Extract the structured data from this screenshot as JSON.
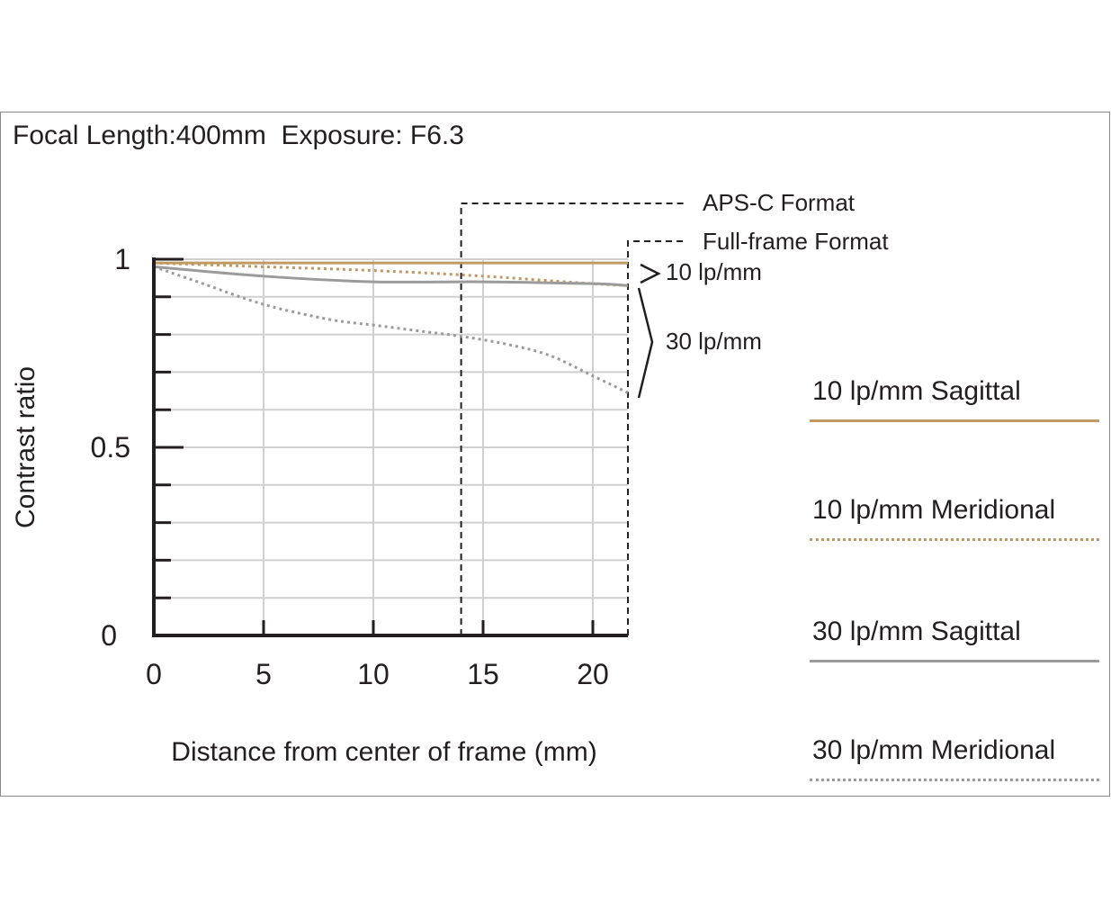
{
  "title": "Focal Length:400mm  Exposure: F6.3",
  "colors": {
    "sagittal_10": "#c09a62",
    "meridional_10": "#c09a62",
    "sagittal_30": "#9b9b9b",
    "meridional_30": "#9b9b9b",
    "axis": "#231f20",
    "grid": "#d0d0d0"
  },
  "annotations": {
    "apsc": "APS-C Format",
    "fullframe": "Full-frame Format",
    "group10": "10 lp/mm",
    "group30": "30 lp/mm"
  },
  "legend": [
    {
      "label": "10 lp/mm Sagittal",
      "style": "solid",
      "color": "#c09a62"
    },
    {
      "label": "10 lp/mm Meridional",
      "style": "dotted",
      "color": "#c09a62"
    },
    {
      "label": "30 lp/mm Sagittal",
      "style": "solid",
      "color": "#9b9b9b"
    },
    {
      "label": "30 lp/mm Meridional",
      "style": "dotted",
      "color": "#9b9b9b"
    }
  ],
  "chart_data": {
    "type": "line",
    "title": "Focal Length:400mm  Exposure: F6.3",
    "xlabel": "Distance from center of frame (mm)",
    "ylabel": "Contrast ratio",
    "xlim": [
      0,
      21.6
    ],
    "ylim": [
      0,
      1
    ],
    "x_ticks": [
      0,
      5,
      10,
      15,
      20
    ],
    "y_ticks": [
      0,
      0.5,
      1
    ],
    "y_tick_labels": [
      "0",
      "0.5",
      "1"
    ],
    "apsc_limit": 14,
    "fullframe_limit": 21.6,
    "grid": true,
    "legend_position": "right",
    "series": [
      {
        "name": "10 lp/mm Sagittal",
        "style": "solid",
        "color": "#c09a62",
        "x": [
          0,
          5,
          10,
          15,
          20,
          21.6
        ],
        "y": [
          0.99,
          0.99,
          0.99,
          0.99,
          0.99,
          0.99
        ]
      },
      {
        "name": "10 lp/mm Meridional",
        "style": "dotted",
        "color": "#c09a62",
        "x": [
          0,
          5,
          10,
          15,
          20,
          21.6
        ],
        "y": [
          0.99,
          0.98,
          0.97,
          0.955,
          0.935,
          0.93
        ]
      },
      {
        "name": "30 lp/mm Sagittal",
        "style": "solid",
        "color": "#9b9b9b",
        "x": [
          0,
          5,
          10,
          15,
          20,
          21.6
        ],
        "y": [
          0.98,
          0.955,
          0.94,
          0.94,
          0.935,
          0.93
        ]
      },
      {
        "name": "30 lp/mm Meridional",
        "style": "dotted",
        "color": "#9b9b9b",
        "x": [
          0,
          2,
          5,
          8,
          10,
          12,
          14,
          16,
          18,
          20,
          21.6
        ],
        "y": [
          0.98,
          0.94,
          0.88,
          0.84,
          0.825,
          0.81,
          0.795,
          0.775,
          0.745,
          0.69,
          0.645
        ]
      }
    ]
  }
}
